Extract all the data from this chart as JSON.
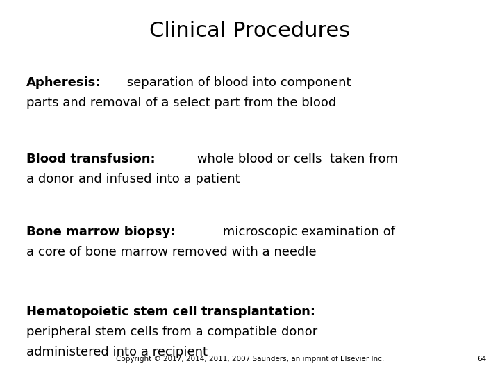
{
  "title": "Clinical Procedures",
  "title_fontsize": 22,
  "background_color": "#ffffff",
  "text_color": "#000000",
  "footer_text": "Copyright © 2017, 2014, 2011, 2007 Saunders, an imprint of Elsevier Inc.",
  "page_number": "64",
  "footer_fontsize": 7.5,
  "body_fontsize": 13,
  "entries": [
    {
      "bold_part": "Apheresis:",
      "line1_normal": " separation of blood into component",
      "line2": "parts and removal of a select part from the blood"
    },
    {
      "bold_part": "Blood transfusion:",
      "line1_normal": " whole blood or cells  taken from",
      "line2": "a donor and infused into a patient"
    },
    {
      "bold_part": "Bone marrow biopsy:",
      "line1_normal": " microscopic examination of",
      "line2": "a core of bone marrow removed with a needle"
    },
    {
      "bold_part": "Hematopoietic stem cell transplantation:",
      "line1_normal": "",
      "line2": "peripheral stem cells from a compatible donor",
      "line3": "administered into a recipient"
    }
  ]
}
